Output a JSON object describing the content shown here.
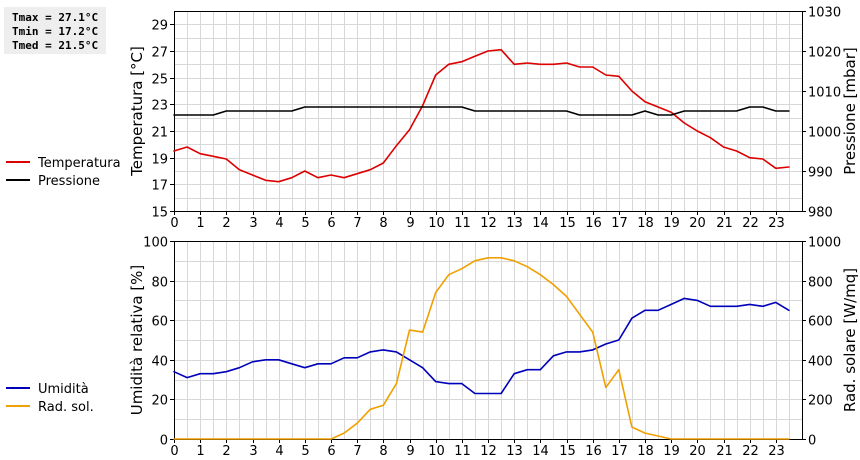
{
  "stats": {
    "lines": [
      "Tmax = 27.1°C",
      "Tmin = 17.2°C",
      "Tmed = 21.5°C"
    ]
  },
  "chart_data": [
    {
      "type": "line",
      "x": [
        0,
        0.5,
        1,
        1.5,
        2,
        2.5,
        3,
        3.5,
        4,
        4.5,
        5,
        5.5,
        6,
        6.5,
        7,
        7.5,
        8,
        8.5,
        9,
        9.5,
        10,
        10.5,
        11,
        11.5,
        12,
        12.5,
        13,
        13.5,
        14,
        14.5,
        15,
        15.5,
        16,
        16.5,
        17,
        17.5,
        18,
        18.5,
        19,
        19.5,
        20,
        20.5,
        21,
        21.5,
        22,
        22.5,
        23,
        23.5
      ],
      "xlim": [
        0,
        24
      ],
      "xticks": [
        "0",
        "1",
        "2",
        "3",
        "4",
        "5",
        "6",
        "7",
        "8",
        "9",
        "10",
        "11",
        "12",
        "13",
        "14",
        "15",
        "16",
        "17",
        "18",
        "19",
        "20",
        "21",
        "22",
        "23"
      ],
      "ylabel": "Temperatura [°C]",
      "ylim": [
        15,
        30
      ],
      "yticks": [
        "15",
        "17",
        "19",
        "21",
        "23",
        "25",
        "27",
        "29"
      ],
      "y2label": "Pressione [mbar]",
      "y2lim": [
        980,
        1030
      ],
      "y2ticks": [
        "980",
        "990",
        "1000",
        "1010",
        "1020",
        "1030"
      ],
      "legend_position": "left",
      "series": [
        {
          "name": "Temperatura",
          "color": "#dd0000",
          "axis": "left",
          "values": [
            19.5,
            19.8,
            19.3,
            19.1,
            18.9,
            18.1,
            17.7,
            17.3,
            17.2,
            17.5,
            18.0,
            17.5,
            17.7,
            17.5,
            17.8,
            18.1,
            18.6,
            19.9,
            21.1,
            22.9,
            25.2,
            26.0,
            26.2,
            26.6,
            27.0,
            27.1,
            26.0,
            26.1,
            26.0,
            26.0,
            26.1,
            25.8,
            25.8,
            25.2,
            25.1,
            24.0,
            23.2,
            22.8,
            22.4,
            21.6,
            21.0,
            20.5,
            19.8,
            19.5,
            19.0,
            18.9,
            18.2,
            18.3
          ]
        },
        {
          "name": "Pressione",
          "color": "#000000",
          "axis": "right",
          "values": [
            1004,
            1004,
            1004,
            1004,
            1005,
            1005,
            1005,
            1005,
            1005,
            1005,
            1006,
            1006,
            1006,
            1006,
            1006,
            1006,
            1006,
            1006,
            1006,
            1006,
            1006,
            1006,
            1006,
            1005,
            1005,
            1005,
            1005,
            1005,
            1005,
            1005,
            1005,
            1004,
            1004,
            1004,
            1004,
            1004,
            1005,
            1004,
            1004,
            1005,
            1005,
            1005,
            1005,
            1005,
            1006,
            1006,
            1005,
            1005
          ]
        }
      ]
    },
    {
      "type": "line",
      "x": [
        0,
        0.5,
        1,
        1.5,
        2,
        2.5,
        3,
        3.5,
        4,
        4.5,
        5,
        5.5,
        6,
        6.5,
        7,
        7.5,
        8,
        8.5,
        9,
        9.5,
        10,
        10.5,
        11,
        11.5,
        12,
        12.5,
        13,
        13.5,
        14,
        14.5,
        15,
        15.5,
        16,
        16.5,
        17,
        17.5,
        18,
        18.5,
        19,
        19.5,
        20,
        20.5,
        21,
        21.5,
        22,
        22.5,
        23,
        23.5
      ],
      "xlim": [
        0,
        24
      ],
      "xticks": [
        "0",
        "1",
        "2",
        "3",
        "4",
        "5",
        "6",
        "7",
        "8",
        "9",
        "10",
        "11",
        "12",
        "13",
        "14",
        "15",
        "16",
        "17",
        "18",
        "19",
        "20",
        "21",
        "22",
        "23"
      ],
      "ylabel": "Umidità relativa [%]",
      "ylim": [
        0,
        100
      ],
      "yticks": [
        "0",
        "20",
        "40",
        "60",
        "80",
        "100"
      ],
      "y2label": "Rad. solare [W/mq]",
      "y2lim": [
        0,
        1000
      ],
      "y2ticks": [
        "0",
        "200",
        "400",
        "600",
        "800",
        "1000"
      ],
      "legend_position": "left",
      "series": [
        {
          "name": "Umidità",
          "color": "#0000bb",
          "axis": "left",
          "values": [
            34,
            31,
            33,
            33,
            34,
            36,
            39,
            40,
            40,
            38,
            36,
            38,
            38,
            41,
            41,
            44,
            45,
            44,
            40,
            36,
            29,
            28,
            28,
            23,
            23,
            23,
            33,
            35,
            35,
            42,
            44,
            44,
            45,
            48,
            50,
            61,
            65,
            65,
            68,
            71,
            70,
            67,
            67,
            67,
            68,
            67,
            69,
            65
          ]
        },
        {
          "name": "Rad. sol.",
          "color": "#f0a000",
          "axis": "right",
          "values": [
            0,
            0,
            0,
            0,
            0,
            0,
            0,
            0,
            0,
            0,
            0,
            0,
            0,
            30,
            80,
            150,
            170,
            280,
            550,
            540,
            740,
            830,
            860,
            900,
            915,
            915,
            900,
            870,
            830,
            780,
            720,
            630,
            540,
            260,
            350,
            60,
            30,
            15,
            0,
            0,
            0,
            0,
            0,
            0,
            0,
            0,
            0,
            0
          ]
        }
      ]
    }
  ]
}
